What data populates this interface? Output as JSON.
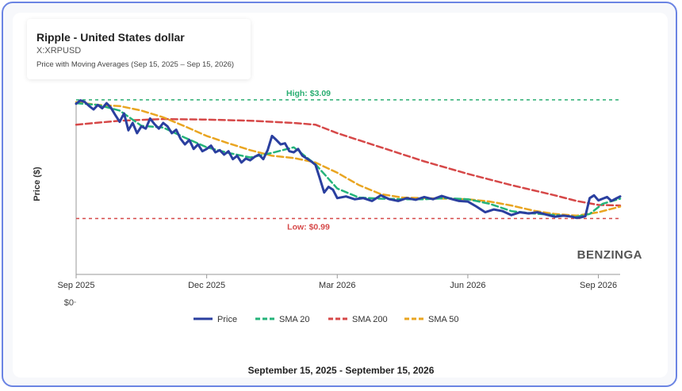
{
  "title": "Ripple - United States dollar",
  "symbol": "X:XRPUSD",
  "subtitle": "Price with Moving Averages (Sep 15, 2025 – Sep 15, 2026)",
  "footer": "September 15, 2025 - September 15, 2026",
  "watermark": "BENZINGA",
  "colors": {
    "price": "#2a3f9f",
    "sma20": "#24b37a",
    "sma200": "#d64848",
    "sma50": "#e9a521",
    "high": "#2aae72",
    "low": "#d64848"
  },
  "chart_data": {
    "type": "line",
    "ylabel": "Price ($)",
    "x_tick_labels": [
      "Sep 2025",
      "Dec 2025",
      "Mar 2026",
      "Jun 2026",
      "Sep 2026"
    ],
    "x_ticks": [
      0,
      3,
      6,
      9,
      12
    ],
    "x_range": [
      0,
      12.5
    ],
    "y_range": [
      0,
      3.2
    ],
    "y_tick_label": "$0",
    "legend_position": "bottom",
    "annotations": {
      "high": {
        "label": "High: $3.09",
        "value": 3.09
      },
      "low": {
        "label": "Low: $0.99",
        "value": 0.99
      }
    },
    "series": [
      {
        "name": "Price",
        "x": [
          0,
          0.1,
          0.2,
          0.3,
          0.4,
          0.5,
          0.6,
          0.7,
          0.8,
          0.9,
          1.0,
          1.1,
          1.2,
          1.3,
          1.4,
          1.5,
          1.6,
          1.7,
          1.8,
          1.9,
          2.0,
          2.1,
          2.2,
          2.3,
          2.4,
          2.5,
          2.6,
          2.7,
          2.8,
          2.9,
          3.0,
          3.1,
          3.2,
          3.3,
          3.4,
          3.5,
          3.6,
          3.7,
          3.8,
          3.9,
          4.0,
          4.1,
          4.2,
          4.3,
          4.4,
          4.5,
          4.6,
          4.7,
          4.8,
          4.9,
          5.0,
          5.1,
          5.2,
          5.3,
          5.4,
          5.5,
          5.6,
          5.7,
          5.8,
          5.9,
          6.0,
          6.2,
          6.4,
          6.6,
          6.8,
          7.0,
          7.2,
          7.4,
          7.6,
          7.8,
          8.0,
          8.2,
          8.4,
          8.6,
          8.8,
          9.0,
          9.2,
          9.4,
          9.6,
          9.8,
          10.0,
          10.2,
          10.4,
          10.6,
          10.8,
          11.0,
          11.2,
          11.4,
          11.5,
          11.6,
          11.7,
          11.8,
          11.9,
          12.0,
          12.1,
          12.2,
          12.3,
          12.4,
          12.5
        ],
        "values": [
          3.02,
          3.08,
          3.05,
          2.98,
          2.92,
          3.0,
          2.94,
          3.03,
          2.95,
          2.82,
          2.7,
          2.85,
          2.55,
          2.68,
          2.5,
          2.62,
          2.58,
          2.76,
          2.66,
          2.58,
          2.68,
          2.62,
          2.5,
          2.56,
          2.4,
          2.3,
          2.38,
          2.22,
          2.3,
          2.18,
          2.22,
          2.28,
          2.16,
          2.2,
          2.12,
          2.18,
          2.04,
          2.1,
          1.98,
          2.05,
          2.02,
          2.08,
          2.12,
          2.04,
          2.2,
          2.45,
          2.38,
          2.3,
          2.32,
          2.18,
          2.16,
          2.22,
          2.1,
          2.05,
          2.0,
          1.94,
          1.7,
          1.45,
          1.55,
          1.5,
          1.35,
          1.38,
          1.33,
          1.35,
          1.3,
          1.4,
          1.33,
          1.3,
          1.35,
          1.32,
          1.37,
          1.33,
          1.39,
          1.34,
          1.3,
          1.29,
          1.2,
          1.1,
          1.15,
          1.12,
          1.05,
          1.1,
          1.08,
          1.1,
          1.06,
          1.02,
          1.04,
          1.02,
          1.0,
          1.01,
          1.03,
          1.35,
          1.4,
          1.31,
          1.34,
          1.37,
          1.3,
          1.34,
          1.38
        ]
      },
      {
        "name": "SMA 20",
        "x": [
          0,
          0.5,
          1.0,
          1.5,
          2.0,
          2.5,
          3.0,
          3.5,
          4.0,
          4.5,
          5.0,
          5.5,
          6.0,
          6.5,
          7.0,
          7.5,
          8.0,
          8.5,
          9.0,
          9.5,
          10.0,
          10.5,
          11.0,
          11.5,
          11.8,
          12.1,
          12.5
        ],
        "values": [
          3.03,
          3.0,
          2.9,
          2.63,
          2.6,
          2.42,
          2.25,
          2.15,
          2.07,
          2.15,
          2.25,
          1.95,
          1.52,
          1.36,
          1.34,
          1.33,
          1.33,
          1.35,
          1.33,
          1.25,
          1.12,
          1.08,
          1.05,
          1.02,
          1.07,
          1.25,
          1.34
        ]
      },
      {
        "name": "SMA 200",
        "x": [
          0,
          1.0,
          2.0,
          3.0,
          4.0,
          5.0,
          5.5,
          6.0,
          7.0,
          8.0,
          9.0,
          10.0,
          11.0,
          11.5,
          12.0,
          12.5
        ],
        "values": [
          2.65,
          2.72,
          2.75,
          2.74,
          2.72,
          2.68,
          2.65,
          2.5,
          2.25,
          2.0,
          1.78,
          1.58,
          1.4,
          1.3,
          1.23,
          1.22
        ]
      },
      {
        "name": "SMA 50",
        "x": [
          0,
          0.5,
          1.0,
          1.5,
          2.0,
          2.5,
          3.0,
          3.5,
          4.0,
          4.5,
          5.0,
          5.5,
          6.0,
          6.5,
          7.0,
          7.5,
          8.0,
          8.5,
          9.0,
          9.5,
          10.0,
          10.5,
          11.0,
          11.5,
          12.0,
          12.5
        ],
        "values": [
          3.05,
          3.0,
          2.98,
          2.9,
          2.78,
          2.62,
          2.45,
          2.32,
          2.2,
          2.1,
          2.06,
          1.98,
          1.8,
          1.58,
          1.42,
          1.36,
          1.35,
          1.34,
          1.33,
          1.29,
          1.22,
          1.13,
          1.07,
          1.04,
          1.1,
          1.2
        ]
      }
    ]
  }
}
